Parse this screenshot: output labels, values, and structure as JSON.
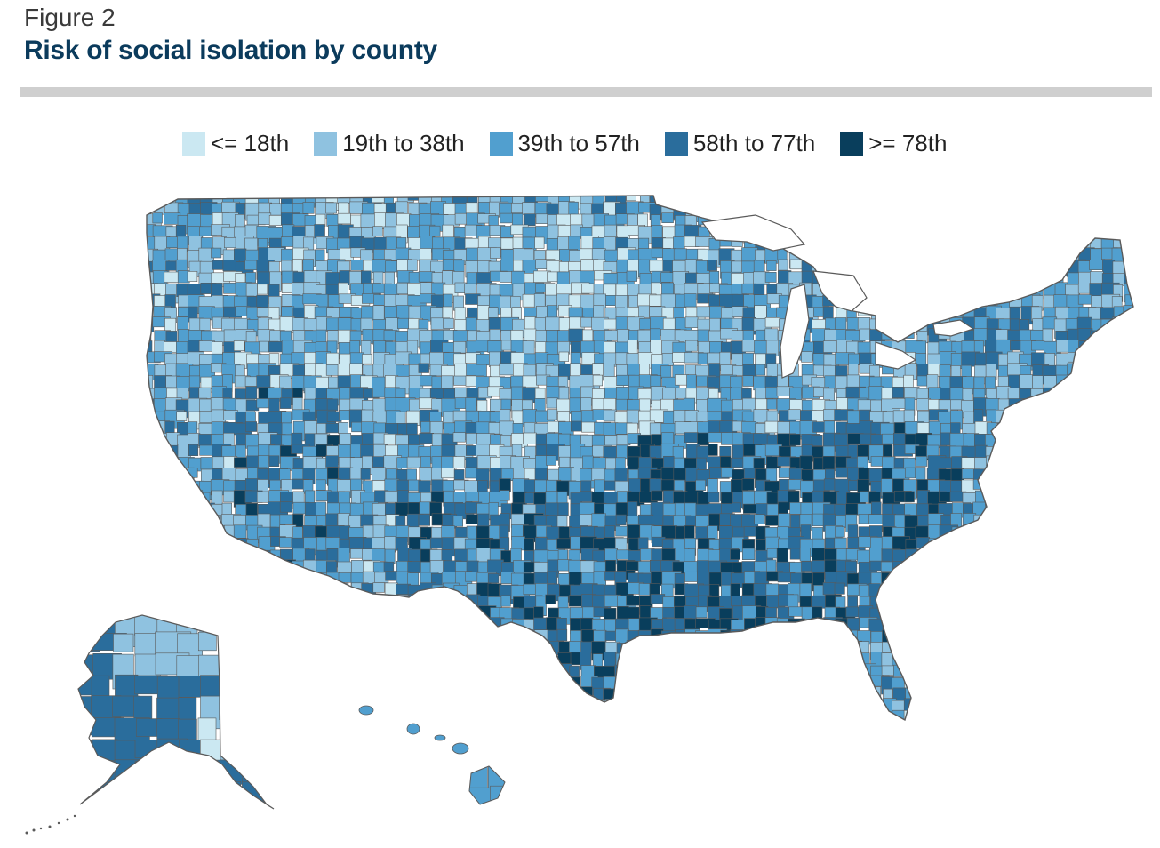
{
  "figure_label": "Figure 2",
  "title": "Risk of social isolation by county",
  "legend": [
    {
      "label": "<= 18th",
      "color": "#cbe8f2"
    },
    {
      "label": "19th to 38th",
      "color": "#8fc2e0"
    },
    {
      "label": "39th to 57th",
      "color": "#519fcf"
    },
    {
      "label": "58th to 77th",
      "color": "#2a6d9c"
    },
    {
      "label": ">= 78th",
      "color": "#093e5c"
    }
  ],
  "map": {
    "type": "choropleth",
    "regions": [
      "contiguous-us",
      "alaska",
      "hawaii"
    ],
    "border_color": "#5a5a5a"
  }
}
